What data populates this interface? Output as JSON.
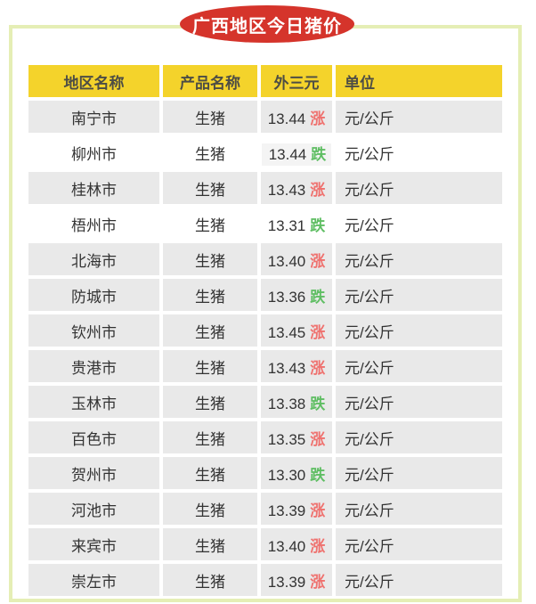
{
  "badge": {
    "label": "广西地区今日猪价",
    "bg_color": "#d5342b",
    "text_color": "#ffffff"
  },
  "frame": {
    "border_color": "#e5eeb5"
  },
  "table": {
    "header": {
      "bg_color": "#f4d32b",
      "columns": [
        "地区名称",
        "产品名称",
        "外三元",
        "单位"
      ]
    },
    "colors": {
      "rise": "#ef716e",
      "fall": "#5fbe63",
      "row_gray": "#e9e9e9",
      "row_white": "#ffffff",
      "text": "#333333"
    },
    "rows": [
      {
        "region": "南宁市",
        "product": "生猪",
        "price": "13.44",
        "trend": "涨",
        "direction": "up",
        "unit": "元/公斤",
        "shade": "gray",
        "price_highlight": false
      },
      {
        "region": "柳州市",
        "product": "生猪",
        "price": "13.44",
        "trend": "跌",
        "direction": "down",
        "unit": "元/公斤",
        "shade": "white",
        "price_highlight": true
      },
      {
        "region": "桂林市",
        "product": "生猪",
        "price": "13.43",
        "trend": "涨",
        "direction": "up",
        "unit": "元/公斤",
        "shade": "gray",
        "price_highlight": false
      },
      {
        "region": "梧州市",
        "product": "生猪",
        "price": "13.31",
        "trend": "跌",
        "direction": "down",
        "unit": "元/公斤",
        "shade": "white",
        "price_highlight": false
      },
      {
        "region": "北海市",
        "product": "生猪",
        "price": "13.40",
        "trend": "涨",
        "direction": "up",
        "unit": "元/公斤",
        "shade": "gray",
        "price_highlight": false
      },
      {
        "region": "防城市",
        "product": "生猪",
        "price": "13.36",
        "trend": "跌",
        "direction": "down",
        "unit": "元/公斤",
        "shade": "gray",
        "price_highlight": false
      },
      {
        "region": "钦州市",
        "product": "生猪",
        "price": "13.45",
        "trend": "涨",
        "direction": "up",
        "unit": "元/公斤",
        "shade": "gray",
        "price_highlight": false
      },
      {
        "region": "贵港市",
        "product": "生猪",
        "price": "13.43",
        "trend": "涨",
        "direction": "up",
        "unit": "元/公斤",
        "shade": "gray",
        "price_highlight": false
      },
      {
        "region": "玉林市",
        "product": "生猪",
        "price": "13.38",
        "trend": "跌",
        "direction": "down",
        "unit": "元/公斤",
        "shade": "gray",
        "price_highlight": false
      },
      {
        "region": "百色市",
        "product": "生猪",
        "price": "13.35",
        "trend": "涨",
        "direction": "up",
        "unit": "元/公斤",
        "shade": "gray",
        "price_highlight": false
      },
      {
        "region": "贺州市",
        "product": "生猪",
        "price": "13.30",
        "trend": "跌",
        "direction": "down",
        "unit": "元/公斤",
        "shade": "gray",
        "price_highlight": false
      },
      {
        "region": "河池市",
        "product": "生猪",
        "price": "13.39",
        "trend": "涨",
        "direction": "up",
        "unit": "元/公斤",
        "shade": "gray",
        "price_highlight": false
      },
      {
        "region": "来宾市",
        "product": "生猪",
        "price": "13.40",
        "trend": "涨",
        "direction": "up",
        "unit": "元/公斤",
        "shade": "gray",
        "price_highlight": false
      },
      {
        "region": "崇左市",
        "product": "生猪",
        "price": "13.39",
        "trend": "涨",
        "direction": "up",
        "unit": "元/公斤",
        "shade": "gray",
        "price_highlight": false
      }
    ]
  }
}
